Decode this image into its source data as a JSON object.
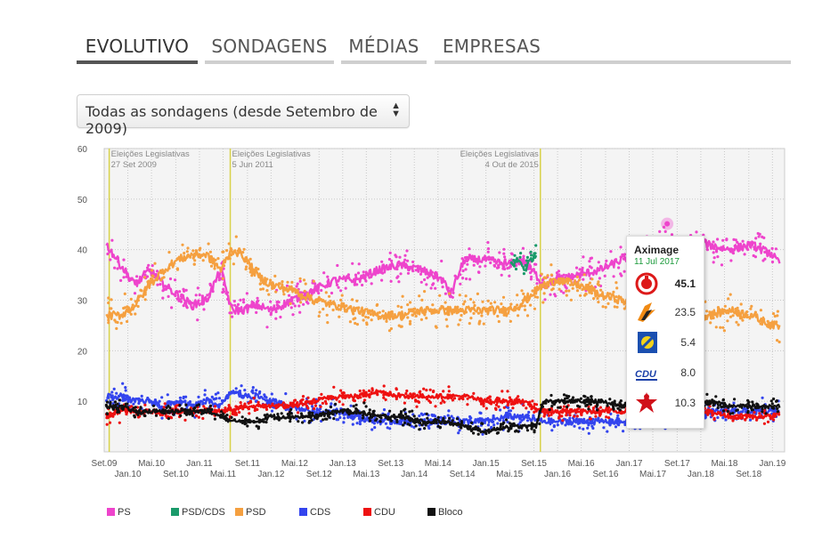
{
  "tabs": [
    {
      "label": "EVOLUTIVO",
      "active": true
    },
    {
      "label": "SONDAGENS",
      "active": false
    },
    {
      "label": "MÉDIAS",
      "active": false
    },
    {
      "label": "EMPRESAS",
      "active": false
    }
  ],
  "filter": {
    "selected": "Todas as sondagens (desde Setembro de 2009)"
  },
  "chart_data": {
    "type": "line",
    "ylim": [
      0,
      60
    ],
    "yticks": [
      10,
      20,
      30,
      40,
      50,
      60
    ],
    "xlim": [
      2009.67,
      2019.17
    ],
    "xticks": [
      {
        "t": 2009.67,
        "label": "Set.09",
        "row": 1
      },
      {
        "t": 2010.0,
        "label": "Jan.10",
        "row": 2
      },
      {
        "t": 2010.33,
        "label": "Mai.10",
        "row": 1
      },
      {
        "t": 2010.67,
        "label": "Set.10",
        "row": 2
      },
      {
        "t": 2011.0,
        "label": "Jan.11",
        "row": 1
      },
      {
        "t": 2011.33,
        "label": "Mai.11",
        "row": 2
      },
      {
        "t": 2011.67,
        "label": "Set.11",
        "row": 1
      },
      {
        "t": 2012.0,
        "label": "Jan.12",
        "row": 2
      },
      {
        "t": 2012.33,
        "label": "Mai.12",
        "row": 1
      },
      {
        "t": 2012.67,
        "label": "Set.12",
        "row": 2
      },
      {
        "t": 2013.0,
        "label": "Jan.13",
        "row": 1
      },
      {
        "t": 2013.33,
        "label": "Mai.13",
        "row": 2
      },
      {
        "t": 2013.67,
        "label": "Set.13",
        "row": 1
      },
      {
        "t": 2014.0,
        "label": "Jan.14",
        "row": 2
      },
      {
        "t": 2014.33,
        "label": "Mai.14",
        "row": 1
      },
      {
        "t": 2014.67,
        "label": "Set.14",
        "row": 2
      },
      {
        "t": 2015.0,
        "label": "Jan.15",
        "row": 1
      },
      {
        "t": 2015.33,
        "label": "Mai.15",
        "row": 2
      },
      {
        "t": 2015.67,
        "label": "Set.15",
        "row": 1
      },
      {
        "t": 2016.0,
        "label": "Jan.16",
        "row": 2
      },
      {
        "t": 2016.33,
        "label": "Mai.16",
        "row": 1
      },
      {
        "t": 2016.67,
        "label": "Set.16",
        "row": 2
      },
      {
        "t": 2017.0,
        "label": "Jan.17",
        "row": 1
      },
      {
        "t": 2017.33,
        "label": "Mai.17",
        "row": 2
      },
      {
        "t": 2017.67,
        "label": "Set.17",
        "row": 1
      },
      {
        "t": 2018.0,
        "label": "Jan.18",
        "row": 2
      },
      {
        "t": 2018.33,
        "label": "Mai.18",
        "row": 1
      },
      {
        "t": 2018.67,
        "label": "Set.18",
        "row": 2
      },
      {
        "t": 2019.0,
        "label": "Jan.19",
        "row": 1
      }
    ],
    "elections": [
      {
        "t": 2009.74,
        "line1": "Eleições Legislativas",
        "line2": "27 Set 2009",
        "align": "left"
      },
      {
        "t": 2011.43,
        "line1": "Eleições Legislativas",
        "line2": "5 Jun 2011",
        "align": "left"
      },
      {
        "t": 2015.76,
        "line1": "Eleições Legislativas",
        "line2": "4 Out de 2015",
        "align": "right"
      }
    ],
    "series": [
      {
        "name": "PS",
        "color": "#ee44cc",
        "points": [
          [
            2009.7,
            41
          ],
          [
            2009.9,
            37
          ],
          [
            2010.1,
            33
          ],
          [
            2010.3,
            36
          ],
          [
            2010.5,
            33
          ],
          [
            2010.7,
            31
          ],
          [
            2010.9,
            29
          ],
          [
            2011.1,
            30
          ],
          [
            2011.3,
            36
          ],
          [
            2011.45,
            28
          ],
          [
            2011.6,
            28
          ],
          [
            2011.8,
            29
          ],
          [
            2012.0,
            28
          ],
          [
            2012.3,
            30
          ],
          [
            2012.6,
            32
          ],
          [
            2012.9,
            34
          ],
          [
            2013.2,
            34
          ],
          [
            2013.5,
            36
          ],
          [
            2013.8,
            37
          ],
          [
            2014.1,
            36
          ],
          [
            2014.4,
            34
          ],
          [
            2014.5,
            31
          ],
          [
            2014.7,
            38
          ],
          [
            2015.0,
            38
          ],
          [
            2015.3,
            37
          ],
          [
            2015.5,
            38
          ],
          [
            2015.7,
            35
          ],
          [
            2015.8,
            33
          ],
          [
            2016.0,
            34
          ],
          [
            2016.3,
            35
          ],
          [
            2016.6,
            36
          ],
          [
            2016.9,
            38
          ],
          [
            2017.2,
            40
          ],
          [
            2017.5,
            41
          ],
          [
            2017.8,
            42
          ],
          [
            2018.1,
            41
          ],
          [
            2018.4,
            40
          ],
          [
            2018.7,
            41
          ],
          [
            2019.0,
            39
          ],
          [
            2019.1,
            37
          ]
        ],
        "sd": 3
      },
      {
        "name": "PSD/CDS",
        "color": "#1a9a6a",
        "points": [
          [
            2015.35,
            37
          ],
          [
            2015.45,
            38
          ],
          [
            2015.55,
            36
          ],
          [
            2015.62,
            38
          ],
          [
            2015.7,
            39
          ]
        ],
        "sd": 2.5
      },
      {
        "name": "PSD",
        "color": "#f5a040",
        "points": [
          [
            2009.7,
            27
          ],
          [
            2009.9,
            27
          ],
          [
            2010.1,
            29
          ],
          [
            2010.3,
            33
          ],
          [
            2010.5,
            36
          ],
          [
            2010.7,
            38
          ],
          [
            2010.9,
            39
          ],
          [
            2011.1,
            39
          ],
          [
            2011.3,
            36
          ],
          [
            2011.45,
            40
          ],
          [
            2011.6,
            39
          ],
          [
            2011.8,
            35
          ],
          [
            2012.0,
            33
          ],
          [
            2012.3,
            32
          ],
          [
            2012.6,
            30
          ],
          [
            2012.9,
            29
          ],
          [
            2013.2,
            28
          ],
          [
            2013.5,
            27
          ],
          [
            2013.8,
            27
          ],
          [
            2014.1,
            28
          ],
          [
            2014.4,
            28
          ],
          [
            2014.7,
            28
          ],
          [
            2015.0,
            28
          ],
          [
            2015.3,
            28
          ],
          [
            2015.45,
            29
          ],
          [
            2015.8,
            33
          ],
          [
            2016.0,
            34
          ],
          [
            2016.3,
            33
          ],
          [
            2016.6,
            31
          ],
          [
            2016.9,
            30
          ],
          [
            2017.2,
            28
          ],
          [
            2017.5,
            26
          ],
          [
            2017.8,
            27
          ],
          [
            2018.1,
            27
          ],
          [
            2018.4,
            28
          ],
          [
            2018.7,
            27
          ],
          [
            2019.0,
            25
          ],
          [
            2019.1,
            25
          ]
        ],
        "sd": 3
      },
      {
        "name": "CDS",
        "color": "#3344ee",
        "points": [
          [
            2009.7,
            11
          ],
          [
            2009.9,
            11
          ],
          [
            2010.1,
            10
          ],
          [
            2010.3,
            10
          ],
          [
            2010.5,
            9
          ],
          [
            2010.7,
            10
          ],
          [
            2010.9,
            9
          ],
          [
            2011.1,
            10
          ],
          [
            2011.3,
            9
          ],
          [
            2011.45,
            12
          ],
          [
            2011.6,
            11
          ],
          [
            2011.8,
            11
          ],
          [
            2012.0,
            10
          ],
          [
            2012.3,
            9
          ],
          [
            2012.6,
            8
          ],
          [
            2012.9,
            8
          ],
          [
            2013.2,
            7
          ],
          [
            2013.5,
            6
          ],
          [
            2013.8,
            6
          ],
          [
            2014.1,
            6
          ],
          [
            2014.4,
            6
          ],
          [
            2014.7,
            6
          ],
          [
            2015.0,
            6
          ],
          [
            2015.3,
            7
          ],
          [
            2015.45,
            7
          ],
          [
            2015.8,
            6
          ],
          [
            2016.0,
            6
          ],
          [
            2016.3,
            6
          ],
          [
            2016.6,
            6
          ],
          [
            2016.9,
            6
          ],
          [
            2017.2,
            6
          ],
          [
            2017.5,
            7
          ],
          [
            2017.8,
            8
          ],
          [
            2018.1,
            8
          ],
          [
            2018.4,
            8
          ],
          [
            2018.7,
            8
          ],
          [
            2019.0,
            8
          ],
          [
            2019.1,
            8
          ]
        ],
        "sd": 2.2
      },
      {
        "name": "CDU",
        "color": "#ee1111",
        "points": [
          [
            2009.7,
            7
          ],
          [
            2009.9,
            8
          ],
          [
            2010.1,
            8
          ],
          [
            2010.3,
            8
          ],
          [
            2010.5,
            8
          ],
          [
            2010.7,
            8
          ],
          [
            2010.9,
            8
          ],
          [
            2011.1,
            8
          ],
          [
            2011.3,
            8
          ],
          [
            2011.45,
            8
          ],
          [
            2011.6,
            9
          ],
          [
            2011.8,
            9
          ],
          [
            2012.0,
            9
          ],
          [
            2012.3,
            9
          ],
          [
            2012.6,
            10
          ],
          [
            2012.9,
            11
          ],
          [
            2013.2,
            11
          ],
          [
            2013.5,
            12
          ],
          [
            2013.8,
            11
          ],
          [
            2014.1,
            11
          ],
          [
            2014.4,
            11
          ],
          [
            2014.7,
            11
          ],
          [
            2015.0,
            10
          ],
          [
            2015.3,
            10
          ],
          [
            2015.5,
            10
          ],
          [
            2015.8,
            8
          ],
          [
            2016.0,
            8
          ],
          [
            2016.3,
            8
          ],
          [
            2016.6,
            8
          ],
          [
            2016.9,
            8
          ],
          [
            2017.2,
            8
          ],
          [
            2017.5,
            8
          ],
          [
            2017.8,
            8
          ],
          [
            2018.1,
            8
          ],
          [
            2018.4,
            7
          ],
          [
            2018.7,
            7
          ],
          [
            2019.0,
            7
          ],
          [
            2019.1,
            8
          ]
        ],
        "sd": 1.6
      },
      {
        "name": "Bloco",
        "color": "#111111",
        "points": [
          [
            2009.7,
            9
          ],
          [
            2009.9,
            9
          ],
          [
            2010.1,
            8
          ],
          [
            2010.3,
            8
          ],
          [
            2010.5,
            8
          ],
          [
            2010.7,
            8
          ],
          [
            2010.9,
            8
          ],
          [
            2011.1,
            8
          ],
          [
            2011.3,
            7
          ],
          [
            2011.45,
            6
          ],
          [
            2011.6,
            6
          ],
          [
            2011.8,
            6
          ],
          [
            2012.0,
            7
          ],
          [
            2012.3,
            7
          ],
          [
            2012.6,
            7
          ],
          [
            2012.9,
            8
          ],
          [
            2013.2,
            8
          ],
          [
            2013.5,
            7
          ],
          [
            2013.8,
            7
          ],
          [
            2014.1,
            6
          ],
          [
            2014.4,
            6
          ],
          [
            2014.7,
            5
          ],
          [
            2015.0,
            4
          ],
          [
            2015.3,
            5
          ],
          [
            2015.45,
            5
          ],
          [
            2015.7,
            5
          ],
          [
            2015.8,
            10
          ],
          [
            2016.0,
            10
          ],
          [
            2016.3,
            10
          ],
          [
            2016.6,
            10
          ],
          [
            2016.9,
            9
          ],
          [
            2017.2,
            9
          ],
          [
            2017.5,
            9
          ],
          [
            2017.8,
            9
          ],
          [
            2018.1,
            10
          ],
          [
            2018.4,
            9
          ],
          [
            2018.7,
            9
          ],
          [
            2019.0,
            9
          ],
          [
            2019.1,
            9
          ]
        ],
        "sd": 1.5
      }
    ],
    "highlight": {
      "t": 2017.53,
      "value": 45.1,
      "color": "#ee44cc"
    }
  },
  "tooltip": {
    "company": "Aximage",
    "date": "11 Jul 2017",
    "rows": [
      {
        "party": "PS",
        "value": "45.1",
        "icon": "ps-logo-icon",
        "bold": true
      },
      {
        "party": "PSD",
        "value": "23.5",
        "icon": "psd-logo-icon",
        "bold": false
      },
      {
        "party": "CDS",
        "value": "5.4",
        "icon": "cds-logo-icon",
        "bold": false
      },
      {
        "party": "CDU",
        "value": "8.0",
        "icon": "cdu-logo-icon",
        "bold": false
      },
      {
        "party": "Bloco",
        "value": "10.3",
        "icon": "bloco-logo-icon",
        "bold": false
      }
    ]
  },
  "legend": [
    {
      "label": "PS",
      "color": "#ee44cc"
    },
    {
      "label": "PSD/CDS",
      "color": "#1a9a6a"
    },
    {
      "label": "PSD",
      "color": "#f5a040"
    },
    {
      "label": "CDS",
      "color": "#3344ee"
    },
    {
      "label": "CDU",
      "color": "#ee1111"
    },
    {
      "label": "Bloco",
      "color": "#111111"
    }
  ]
}
